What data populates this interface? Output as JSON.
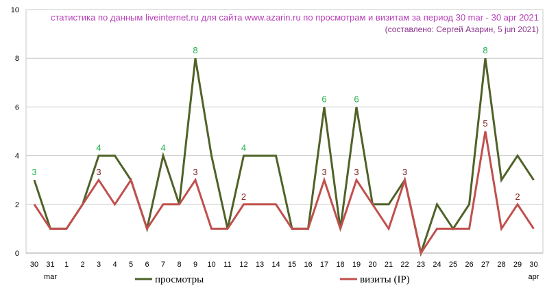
{
  "chart_data": {
    "type": "line",
    "title": "статистика по данным liveinternet.ru для сайта www.azarin.ru по просмотрам и визитам за период 30 mar - 30 apr 2021",
    "subtitle": "(составлено: Сергей Азарин, 5 jun 2021)",
    "categories": [
      "30",
      "31",
      "1",
      "2",
      "3",
      "4",
      "5",
      "6",
      "7",
      "8",
      "9",
      "10",
      "11",
      "12",
      "13",
      "14",
      "15",
      "16",
      "17",
      "18",
      "19",
      "20",
      "21",
      "22",
      "23",
      "24",
      "25",
      "26",
      "27",
      "28",
      "29",
      "30"
    ],
    "month_labels": [
      {
        "index": 1,
        "text": "mar"
      },
      {
        "index": 31,
        "text": "apr"
      }
    ],
    "ylim": [
      0,
      10
    ],
    "yticks": [
      0,
      2,
      4,
      6,
      8,
      10
    ],
    "grid": true,
    "legend_position": "bottom",
    "series": [
      {
        "name": "просмотры",
        "color": "#4f6228",
        "label_color": "#21b04b",
        "values": [
          3,
          1,
          1,
          2,
          4,
          4,
          3,
          1,
          4,
          2,
          8,
          4,
          1,
          4,
          4,
          4,
          1,
          1,
          6,
          1,
          6,
          2,
          2,
          3,
          0,
          2,
          1,
          2,
          8,
          3,
          4,
          3
        ],
        "data_labels": [
          {
            "index": 0,
            "text": "3"
          },
          {
            "index": 4,
            "text": "4"
          },
          {
            "index": 8,
            "text": "4"
          },
          {
            "index": 10,
            "text": "8"
          },
          {
            "index": 13,
            "text": "4"
          },
          {
            "index": 18,
            "text": "6"
          },
          {
            "index": 20,
            "text": "6"
          },
          {
            "index": 28,
            "text": "8"
          }
        ]
      },
      {
        "name": "визиты (IP)",
        "color": "#c0504d",
        "label_color": "#7b1c1c",
        "values": [
          2,
          1,
          1,
          2,
          3,
          2,
          3,
          1,
          2,
          2,
          3,
          1,
          1,
          2,
          2,
          2,
          1,
          1,
          3,
          1,
          3,
          2,
          1,
          3,
          0,
          1,
          1,
          1,
          5,
          1,
          2,
          1
        ],
        "data_labels": [
          {
            "index": 4,
            "text": "3"
          },
          {
            "index": 10,
            "text": "3"
          },
          {
            "index": 13,
            "text": "2"
          },
          {
            "index": 18,
            "text": "3"
          },
          {
            "index": 20,
            "text": "3"
          },
          {
            "index": 23,
            "text": "3"
          },
          {
            "index": 28,
            "text": "5"
          },
          {
            "index": 30,
            "text": "2"
          }
        ]
      }
    ],
    "title_color": "#b83fb8",
    "subtitle_color": "#8a2f8a"
  }
}
